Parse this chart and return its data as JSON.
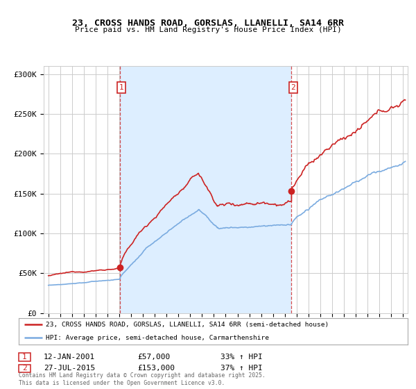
{
  "title1": "23, CROSS HANDS ROAD, GORSLAS, LLANELLI, SA14 6RR",
  "title2": "Price paid vs. HM Land Registry's House Price Index (HPI)",
  "legend_line1": "23, CROSS HANDS ROAD, GORSLAS, LLANELLI, SA14 6RR (semi-detached house)",
  "legend_line2": "HPI: Average price, semi-detached house, Carmarthenshire",
  "footnote": "Contains HM Land Registry data © Crown copyright and database right 2025.\nThis data is licensed under the Open Government Licence v3.0.",
  "purchase1_label": "1",
  "purchase1_date": "12-JAN-2001",
  "purchase1_price": "£57,000",
  "purchase1_hpi": "33% ↑ HPI",
  "purchase2_label": "2",
  "purchase2_date": "27-JUL-2015",
  "purchase2_price": "£153,000",
  "purchase2_hpi": "37% ↑ HPI",
  "vline1_x": 2001.04,
  "vline2_x": 2015.57,
  "purchase1_y": 57000,
  "purchase2_y": 153000,
  "red_color": "#cc2222",
  "blue_color": "#7aabe0",
  "shade_color": "#ddeeff",
  "background_color": "#ffffff",
  "grid_color": "#cccccc",
  "xmin": 1994.6,
  "xmax": 2025.4,
  "ymin": 0,
  "ymax": 310000,
  "xtick_years": [
    1995,
    1996,
    1997,
    1998,
    1999,
    2000,
    2001,
    2002,
    2003,
    2004,
    2005,
    2006,
    2007,
    2008,
    2009,
    2010,
    2011,
    2012,
    2013,
    2014,
    2015,
    2016,
    2017,
    2018,
    2019,
    2020,
    2021,
    2022,
    2023,
    2024,
    2025
  ],
  "yticks": [
    0,
    50000,
    100000,
    150000,
    200000,
    250000,
    300000
  ],
  "ylabels": [
    "£0",
    "£50K",
    "£100K",
    "£150K",
    "£200K",
    "£250K",
    "£300K"
  ]
}
